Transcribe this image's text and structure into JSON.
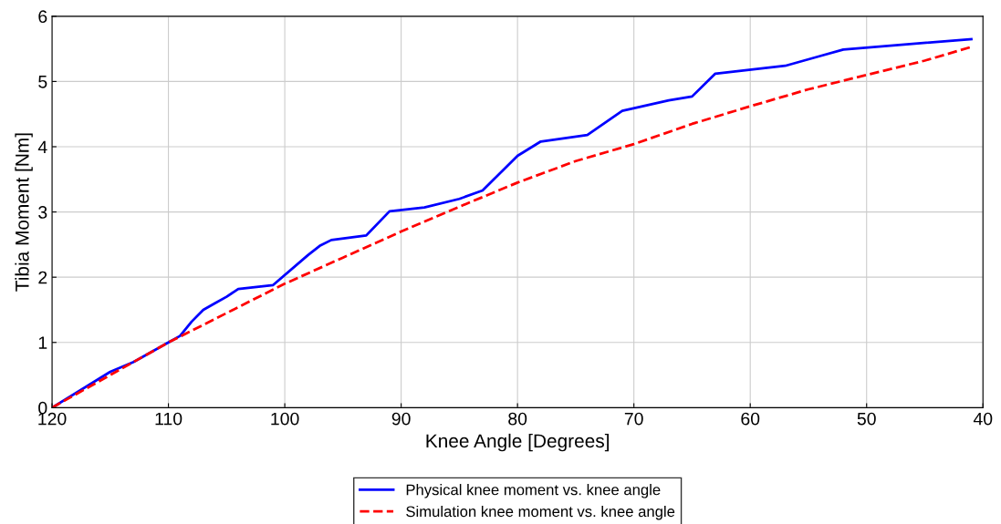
{
  "chart_data": {
    "type": "line",
    "xlabel": "Knee Angle [Degrees]",
    "ylabel": "Tibia Moment [Nm]",
    "xlim": [
      120,
      40
    ],
    "xticks": [
      120,
      110,
      100,
      90,
      80,
      70,
      60,
      50,
      40
    ],
    "ylim": [
      0,
      6
    ],
    "yticks": [
      0,
      1,
      2,
      3,
      4,
      5,
      6
    ],
    "grid": true,
    "legend": "bottom",
    "series": [
      {
        "name": "Physical knee moment vs. knee angle",
        "color": "#0000ff",
        "line_style": "solid",
        "x": [
          120,
          115,
          113,
          110,
          109,
          108,
          107,
          106,
          105,
          104,
          101,
          98,
          97,
          96,
          93,
          91,
          88,
          85,
          83,
          80,
          78,
          74,
          71,
          67,
          65,
          63,
          57,
          54,
          52,
          41
        ],
        "values": [
          0,
          0.55,
          0.7,
          1.0,
          1.1,
          1.32,
          1.5,
          1.6,
          1.7,
          1.82,
          1.88,
          2.34,
          2.48,
          2.57,
          2.64,
          3.01,
          3.07,
          3.2,
          3.33,
          3.86,
          4.08,
          4.18,
          4.55,
          4.71,
          4.77,
          5.12,
          5.24,
          5.39,
          5.49,
          5.65
        ]
      },
      {
        "name": "Simulation knee moment vs. knee angle",
        "color": "#ff0000",
        "line_style": "dashed",
        "x": [
          120,
          115,
          110,
          105,
          100,
          95,
          90,
          85,
          80,
          75,
          70,
          65,
          60,
          55,
          50,
          45,
          41
        ],
        "values": [
          0,
          0.5,
          1.0,
          1.45,
          1.9,
          2.3,
          2.7,
          3.08,
          3.45,
          3.78,
          4.04,
          4.35,
          4.62,
          4.88,
          5.1,
          5.32,
          5.53
        ]
      }
    ]
  }
}
